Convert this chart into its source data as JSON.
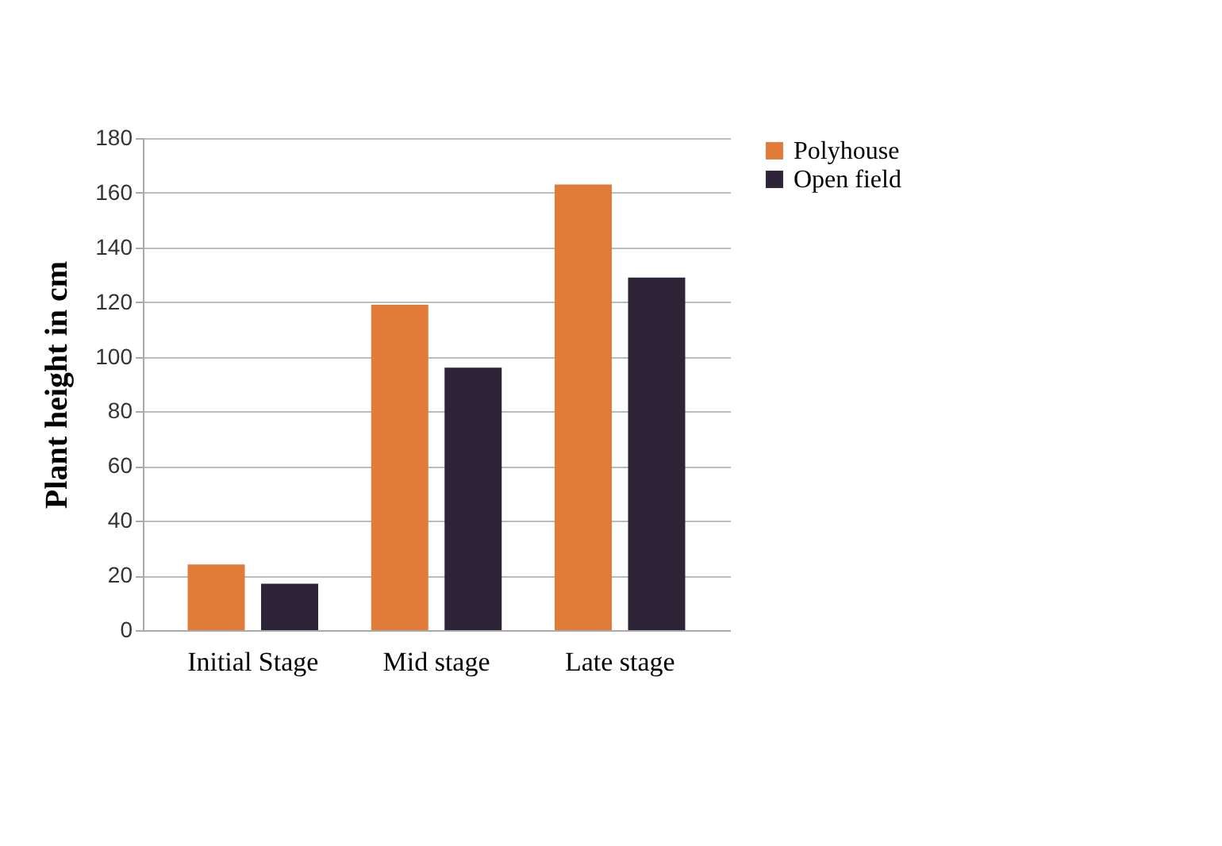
{
  "chart_data": {
    "type": "bar",
    "ylabel": "Plant height in cm",
    "categories": [
      "Initial Stage",
      "Mid stage",
      "Late stage"
    ],
    "series": [
      {
        "name": "Polyhouse",
        "color": "#e07b39",
        "values": [
          24,
          119,
          163
        ]
      },
      {
        "name": "Open field",
        "color": "#2e2438",
        "values": [
          17,
          96,
          129
        ]
      }
    ],
    "ylim": [
      0,
      180
    ],
    "yticks": [
      0,
      20,
      40,
      60,
      80,
      100,
      120,
      140,
      160,
      180
    ],
    "grid": "y",
    "legend": "right"
  }
}
